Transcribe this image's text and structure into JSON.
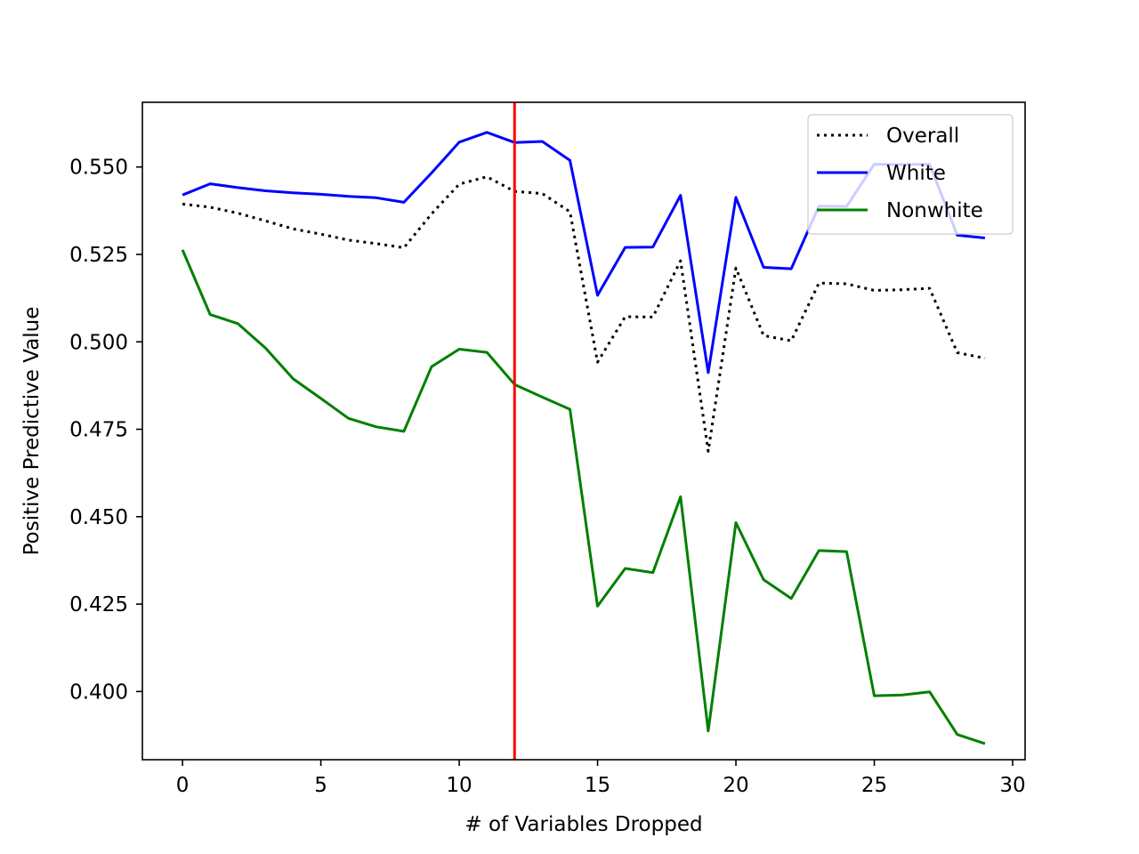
{
  "chart_data": {
    "type": "line",
    "title": "",
    "xlabel": "# of Variables Dropped",
    "ylabel": "Positive Predictive Value",
    "xlim": [
      -1.45,
      30.45
    ],
    "ylim": [
      0.3805,
      0.5685
    ],
    "xticks": [
      0,
      5,
      10,
      15,
      20,
      25,
      30
    ],
    "yticks": [
      0.4,
      0.425,
      0.45,
      0.475,
      0.5,
      0.525,
      0.55
    ],
    "ytick_labels": [
      "0.400",
      "0.425",
      "0.450",
      "0.475",
      "0.500",
      "0.525",
      "0.550"
    ],
    "grid": false,
    "legend_position": "top-right",
    "x": [
      0,
      1,
      2,
      3,
      4,
      5,
      6,
      7,
      8,
      9,
      10,
      11,
      12,
      13,
      14,
      15,
      16,
      17,
      18,
      19,
      20,
      21,
      22,
      23,
      24,
      25,
      26,
      27,
      28,
      29
    ],
    "series": [
      {
        "name": "Overall",
        "color": "#000000",
        "style": "dotted",
        "values": [
          0.5394,
          0.5385,
          0.5368,
          0.5346,
          0.5323,
          0.5308,
          0.5291,
          0.5281,
          0.5269,
          0.5366,
          0.5451,
          0.5472,
          0.543,
          0.5424,
          0.5372,
          0.4942,
          0.5072,
          0.5071,
          0.5232,
          0.4687,
          0.5211,
          0.5018,
          0.5003,
          0.5168,
          0.5166,
          0.5147,
          0.5149,
          0.5153,
          0.4969,
          0.4953
        ]
      },
      {
        "name": "White",
        "color": "#0000ff",
        "style": "solid",
        "values": [
          0.542,
          0.5452,
          0.5441,
          0.5432,
          0.5426,
          0.5422,
          0.5416,
          0.5412,
          0.5399,
          0.5483,
          0.5571,
          0.5599,
          0.557,
          0.5573,
          0.5519,
          0.5133,
          0.527,
          0.5271,
          0.5419,
          0.4912,
          0.5413,
          0.5213,
          0.5209,
          0.5388,
          0.5387,
          0.5508,
          0.5507,
          0.5508,
          0.5305,
          0.5297
        ]
      },
      {
        "name": "Nonwhite",
        "color": "#008000",
        "style": "solid",
        "values": [
          0.5263,
          0.5078,
          0.5052,
          0.4982,
          0.4894,
          0.4838,
          0.4781,
          0.4757,
          0.4744,
          0.4929,
          0.4979,
          0.497,
          0.4878,
          0.4842,
          0.4807,
          0.4244,
          0.4352,
          0.434,
          0.4557,
          0.3887,
          0.4483,
          0.432,
          0.4266,
          0.4403,
          0.44,
          0.3988,
          0.399,
          0.3999,
          0.3877,
          0.3851
        ]
      }
    ],
    "vertical_line": {
      "x": 12,
      "color": "#ff0000"
    }
  }
}
